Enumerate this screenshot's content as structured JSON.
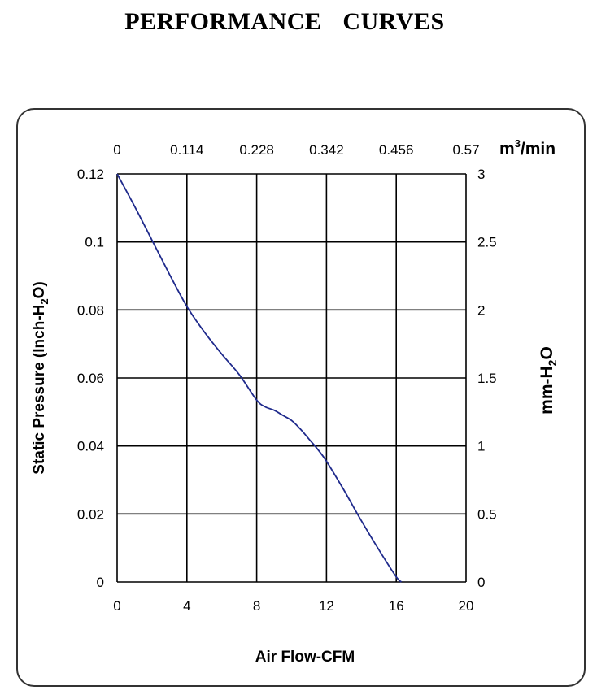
{
  "page": {
    "title": "PERFORMANCE    CURVES"
  },
  "chart_data": {
    "type": "line",
    "title": "PERFORMANCE    CURVES",
    "xlabel": "Air Flow-CFM",
    "xlim": [
      0,
      20
    ],
    "xticks": [
      "0",
      "4",
      "8",
      "12",
      "16",
      "20"
    ],
    "x2label": {
      "base": "m",
      "sup": "3",
      "rest": "/min"
    },
    "x2lim": [
      0,
      0.57
    ],
    "x2ticks": [
      "0",
      "0.114",
      "0.228",
      "0.342",
      "0.456",
      "0.57"
    ],
    "ylabel": {
      "pre": "Static Pressure (Inch-H",
      "sub": "2",
      "post": "O)"
    },
    "ylim": [
      0,
      0.12
    ],
    "yticks": [
      "0",
      "0.02",
      "0.04",
      "0.06",
      "0.08",
      "0.1",
      "0.12"
    ],
    "y2label": {
      "pre": "mm-H",
      "sub": "2",
      "post": "O"
    },
    "y2lim": [
      0,
      3
    ],
    "y2ticks": [
      "0",
      "0.5",
      "1",
      "1.5",
      "2",
      "2.5",
      "3"
    ],
    "grid": true,
    "series": [
      {
        "color": "#1f2a8c",
        "x": [
          0,
          1,
          2,
          3,
          4,
          5,
          6,
          7,
          8,
          8.5,
          9,
          9.5,
          10,
          10.5,
          11,
          11.5,
          12,
          13,
          14,
          15,
          16,
          16.3
        ],
        "y": [
          0.12,
          0.1105,
          0.1005,
          0.0905,
          0.081,
          0.0735,
          0.067,
          0.061,
          0.0535,
          0.0515,
          0.0505,
          0.049,
          0.0475,
          0.045,
          0.042,
          0.039,
          0.0355,
          0.027,
          0.018,
          0.0095,
          0.0015,
          0.0
        ]
      }
    ]
  }
}
